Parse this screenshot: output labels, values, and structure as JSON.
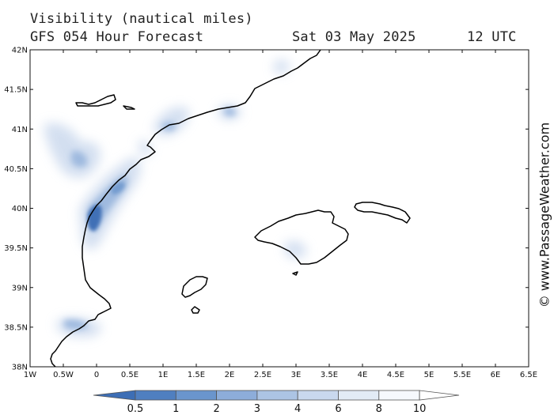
{
  "header": {
    "title": "Visibility (nautical miles)",
    "model": "GFS 054 Hour Forecast",
    "date": "Sat 03 May 2025",
    "time": "12 UTC"
  },
  "credit": "© www.PassageWeather.com",
  "map": {
    "lon_range": [
      -1,
      6.5
    ],
    "lat_range": [
      38,
      42
    ],
    "lon_ticks": [
      "1W",
      "0.5W",
      "0",
      "0.5E",
      "1E",
      "1.5E",
      "2E",
      "2.5E",
      "3E",
      "3.5E",
      "4E",
      "4.5E",
      "5E",
      "5.5E",
      "6E",
      "6.5E"
    ],
    "lat_ticks": [
      "38N",
      "38.5N",
      "39N",
      "39.5N",
      "40N",
      "40.5N",
      "41N",
      "41.5N",
      "42N"
    ]
  },
  "legend": {
    "labels": [
      "0.5",
      "1",
      "2",
      "3",
      "4",
      "6",
      "8",
      "10"
    ],
    "colors": [
      "#3d6eb5",
      "#4f7fc0",
      "#6a95cd",
      "#8dadda",
      "#acc4e4",
      "#c9d8ee",
      "#e2ebf6",
      "#f6f9fd"
    ]
  }
}
